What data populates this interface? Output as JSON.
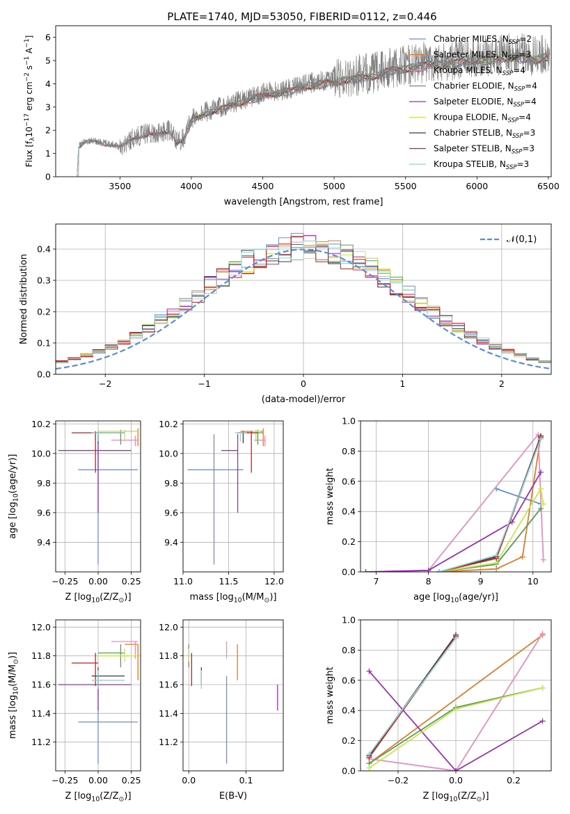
{
  "figure": {
    "title": "PLATE=1740, MJD=53050, FIBERID=0112, z=0.446"
  },
  "chart_data": [
    {
      "id": "spectrum",
      "type": "line",
      "xlabel": "wavelength [Angstrom, rest frame]",
      "ylabel": "Flux [f$_\\lambda$10$^{-17}$ erg cm$^{-2}$ s$^{-1}$ A$^{-1}$]",
      "ylabel_parts": [
        "Flux [f",
        "λ",
        "10",
        "−17",
        " erg cm",
        "−2",
        " s",
        "−1",
        " A",
        "−1",
        "]"
      ],
      "xlim": [
        3050,
        6520
      ],
      "ylim": [
        0,
        6.5
      ],
      "xticks": [
        3500,
        4000,
        4500,
        5000,
        5500,
        6000,
        6500
      ],
      "yticks": [
        0,
        1,
        2,
        3,
        4,
        5,
        6
      ],
      "grid": false,
      "legend_position": "upper-right",
      "data_curve": {
        "x": [
          3200,
          3210,
          3250,
          3300,
          3350,
          3400,
          3450,
          3500,
          3550,
          3600,
          3650,
          3700,
          3750,
          3800,
          3850,
          3900,
          3950,
          4000,
          4100,
          4200,
          4300,
          4400,
          4500,
          4600,
          4700,
          4800,
          4900,
          5000,
          5100,
          5200,
          5300,
          5400,
          5500,
          5600,
          5700,
          5800,
          5900,
          6000,
          6100,
          6200,
          6300,
          6400,
          6500
        ],
        "y": [
          0,
          1.3,
          1.5,
          1.55,
          1.5,
          1.45,
          1.4,
          1.3,
          1.5,
          1.7,
          1.8,
          1.9,
          1.85,
          1.9,
          2.0,
          1.5,
          1.7,
          2.5,
          2.8,
          3.0,
          3.2,
          3.4,
          3.6,
          3.7,
          3.8,
          4.0,
          4.1,
          4.2,
          4.3,
          4.4,
          4.5,
          4.7,
          4.8,
          4.9,
          5.0,
          5.0,
          5.1,
          5.2,
          5.2,
          5.3,
          5.3,
          5.2,
          5.3
        ]
      },
      "series": [
        {
          "name": "Chabrier MILES, N$_{SSP}$=2",
          "label_parts": [
            "Chabrier MILES, N",
            "SSP",
            "=2"
          ],
          "color": "#6a8fd8",
          "start": 3525
        },
        {
          "name": "Salpeter MILES, N$_{SSP}$=3",
          "label_parts": [
            "Salpeter MILES, N",
            "SSP",
            "=3"
          ],
          "color": "#e07c2a",
          "start": 3525
        },
        {
          "name": "Kroupa MILES, N$_{SSP}$=4",
          "label_parts": [
            "Kroupa MILES, N",
            "SSP",
            "=4"
          ],
          "color": "#e58fbf",
          "start": 3525
        },
        {
          "name": "Chabrier ELODIE, N$_{SSP}$=4",
          "label_parts": [
            "Chabrier ELODIE, N",
            "SSP",
            "=4"
          ],
          "color": "#5a9a5a",
          "start": 3900
        },
        {
          "name": "Salpeter ELODIE, N$_{SSP}$=4",
          "label_parts": [
            "Salpeter ELODIE, N",
            "SSP",
            "=4"
          ],
          "color": "#9b30b0",
          "start": 3900
        },
        {
          "name": "Kroupa ELODIE, N$_{SSP}$=4",
          "label_parts": [
            "Kroupa ELODIE, N",
            "SSP",
            "=4"
          ],
          "color": "#c8e64a",
          "start": 3900
        },
        {
          "name": "Chabrier STELIB, N$_{SSP}$=3",
          "label_parts": [
            "Chabrier STELIB, N",
            "SSP",
            "=3"
          ],
          "color": "#3a3a3a",
          "start": 3200
        },
        {
          "name": "Salpeter STELIB, N$_{SSP}$=3",
          "label_parts": [
            "Salpeter STELIB, N",
            "SSP",
            "=3"
          ],
          "color": "#c81e1e",
          "start": 3200
        },
        {
          "name": "Kroupa STELIB, N$_{SSP}$=3",
          "label_parts": [
            "Kroupa STELIB, N",
            "SSP",
            "=3"
          ],
          "color": "#8fd3d8",
          "start": 3200
        }
      ]
    },
    {
      "id": "residual-histogram",
      "type": "histogram",
      "xlabel": "(data-model)/error",
      "ylabel": "Normed distribution",
      "xlim": [
        -2.5,
        2.5
      ],
      "ylim": [
        0,
        0.48
      ],
      "xticks": [
        -2,
        -1,
        0,
        1,
        2
      ],
      "yticks": [
        0.0,
        0.1,
        0.2,
        0.3,
        0.4
      ],
      "grid": true,
      "legend_position": "upper-right",
      "bin_edges_range": [
        -2.5,
        2.5
      ],
      "n_bins": 40,
      "reference_curve": {
        "name": "$\\mathcal{N}(0,1)$",
        "label": "𝒩(0,1)",
        "color": "#5b8bd6",
        "style": "dashed"
      }
    },
    {
      "id": "age-vs-z",
      "type": "errorbar",
      "xlabel": "Z [log$_{10}$(Z/Z$_\\odot$)]",
      "ylabel": "age  [log$_{10}$(age/yr)]",
      "xlim": [
        -0.32,
        0.32
      ],
      "ylim": [
        9.2,
        10.22
      ],
      "xticks": [
        -0.25,
        0.0,
        0.25
      ],
      "yticks": [
        9.4,
        9.6,
        9.8,
        10.0,
        10.2
      ],
      "grid": true
    },
    {
      "id": "age-vs-mass",
      "type": "errorbar",
      "xlabel": "mass [log$_{10}$(M/M$_\\odot$)]",
      "ylabel": "",
      "xlim": [
        11.0,
        12.1
      ],
      "ylim": [
        9.2,
        10.22
      ],
      "xticks": [
        11.0,
        11.5,
        12.0
      ],
      "yticks": [
        9.4,
        9.6,
        9.8,
        10.0,
        10.2
      ],
      "grid": true
    },
    {
      "id": "mass-weight-vs-age",
      "type": "line",
      "xlabel": "age  [log$_{10}$(age/yr)]",
      "ylabel": "mass weight",
      "xlim": [
        6.7,
        10.35
      ],
      "ylim": [
        0,
        1.0
      ],
      "xticks": [
        7,
        8,
        9,
        10
      ],
      "yticks": [
        0.0,
        0.2,
        0.4,
        0.6,
        0.8,
        1.0
      ],
      "grid": true
    },
    {
      "id": "mass-vs-z",
      "type": "errorbar",
      "xlabel": "Z [log$_{10}$(Z/Z$_\\odot$)]",
      "ylabel": "mass [log$_{10}$(M/M$_\\odot$)]",
      "xlim": [
        -0.32,
        0.32
      ],
      "ylim": [
        11.0,
        12.05
      ],
      "xticks": [
        -0.25,
        0.0,
        0.25
      ],
      "yticks": [
        11.2,
        11.4,
        11.6,
        11.8,
        12.0
      ],
      "grid": true
    },
    {
      "id": "mass-vs-ebv",
      "type": "errorbar",
      "xlabel": "E(B-V)",
      "ylabel": "",
      "xlim": [
        -0.01,
        0.165
      ],
      "ylim": [
        11.0,
        12.05
      ],
      "xticks": [
        0.0,
        0.1
      ],
      "yticks": [
        11.2,
        11.4,
        11.6,
        11.8,
        12.0
      ],
      "grid": true
    },
    {
      "id": "mass-weight-vs-z",
      "type": "line",
      "xlabel": "Z [log$_{10}$(Z/Z$_\\odot$)]",
      "ylabel": "mass weight",
      "xlim": [
        -0.33,
        0.33
      ],
      "ylim": [
        0,
        1.0
      ],
      "xticks": [
        -0.2,
        0.0,
        0.2
      ],
      "yticks": [
        0.0,
        0.2,
        0.4,
        0.6,
        0.8,
        1.0
      ],
      "grid": true
    }
  ],
  "estimates": [
    {
      "model": "Chabrier MILES",
      "color": "#6a8fd8",
      "z": [
        -0.15,
        0.0,
        0.3
      ],
      "age": [
        9.25,
        9.89,
        10.13
      ],
      "mass": [
        11.05,
        11.34,
        11.66
      ],
      "ebv": 0.066,
      "ebv_err": 0.0
    },
    {
      "model": "Salpeter MILES",
      "color": "#e07c2a",
      "z": [
        0.2,
        0.3,
        0.3
      ],
      "age": [
        10.05,
        10.15,
        10.17
      ],
      "mass": [
        11.63,
        11.88,
        11.88
      ],
      "ebv": 0.085,
      "ebv_err": 0.0
    },
    {
      "model": "Kroupa MILES",
      "color": "#e58fbf",
      "z": [
        0.1,
        0.28,
        0.3
      ],
      "age": [
        10.05,
        10.09,
        10.12
      ],
      "mass": [
        11.78,
        11.9,
        11.9
      ],
      "ebv": 0.066,
      "ebv_err": 0.0
    },
    {
      "model": "Chabrier ELODIE",
      "color": "#5a9a5a",
      "z": [
        0.0,
        0.17,
        0.2
      ],
      "age": [
        10.06,
        10.14,
        10.16
      ],
      "mass": [
        11.72,
        11.82,
        11.88
      ],
      "ebv": 0.0,
      "ebv_err": 0.0
    },
    {
      "model": "Salpeter ELODIE",
      "color": "#9b30b0",
      "z": [
        -0.3,
        0.0,
        0.25
      ],
      "age": [
        9.6,
        10.02,
        10.13
      ],
      "mass": [
        11.42,
        11.6,
        11.6
      ],
      "ebv": 0.155,
      "ebv_err": 0.0
    },
    {
      "model": "Kroupa ELODIE",
      "color": "#c8e64a",
      "z": [
        0.0,
        0.2,
        0.3
      ],
      "age": [
        10.08,
        10.15,
        10.16
      ],
      "mass": [
        11.76,
        11.8,
        11.85
      ],
      "ebv": 0.0,
      "ebv_err": 0.0
    },
    {
      "model": "Chabrier STELIB",
      "color": "#3a3a3a",
      "z": [
        -0.05,
        0.0,
        0.2
      ],
      "age": [
        10.07,
        10.14,
        10.15
      ],
      "mass": [
        11.6,
        11.66,
        11.72
      ],
      "ebv": 0.022,
      "ebv_err": 0.0
    },
    {
      "model": "Salpeter STELIB",
      "color": "#c81e1e",
      "z": [
        -0.2,
        -0.02,
        0.0
      ],
      "age": [
        9.87,
        10.14,
        10.15
      ],
      "mass": [
        11.59,
        11.75,
        11.82
      ],
      "ebv": 0.005,
      "ebv_err": 0.0
    },
    {
      "model": "Kroupa STELIB",
      "color": "#8fd3d8",
      "z": [
        -0.05,
        0.0,
        0.2
      ],
      "age": [
        10.08,
        10.14,
        10.15
      ],
      "mass": [
        11.57,
        11.63,
        11.7
      ],
      "ebv": 0.022,
      "ebv_err": 0.0
    }
  ],
  "mass_weights": [
    {
      "model": "Chabrier MILES",
      "color": "#6a8fd8",
      "age": [
        9.3,
        10.15
      ],
      "weight": [
        0.55,
        0.45
      ],
      "z": [
        0.0,
        0.0
      ],
      "zweight": [
        0.0,
        0.0
      ]
    },
    {
      "model": "Salpeter MILES",
      "color": "#e07c2a",
      "age": [
        8.2,
        9.3,
        9.8,
        10.15
      ],
      "weight": [
        0.0,
        0.02,
        0.1,
        0.9
      ],
      "z": [
        -0.3,
        0.3
      ],
      "zweight": [
        0.05,
        0.9
      ]
    },
    {
      "model": "Kroupa MILES",
      "color": "#e58fbf",
      "age": [
        6.8,
        8.0,
        10.1,
        10.2
      ],
      "weight": [
        0.0,
        0.01,
        0.91,
        0.08
      ],
      "z": [
        -0.3,
        0.0,
        0.3
      ],
      "zweight": [
        0.08,
        0.0,
        0.91
      ]
    },
    {
      "model": "Chabrier ELODIE",
      "color": "#5a9a5a",
      "age": [
        8.2,
        9.3,
        10.15
      ],
      "weight": [
        0.0,
        0.05,
        0.42
      ],
      "z": [
        -0.3,
        0.0,
        0.3
      ],
      "zweight": [
        0.05,
        0.42,
        0.55
      ]
    },
    {
      "model": "Salpeter ELODIE",
      "color": "#9b30b0",
      "age": [
        6.8,
        8.0,
        9.6,
        10.15
      ],
      "weight": [
        0.0,
        0.01,
        0.33,
        0.66
      ],
      "z": [
        -0.3,
        0.0,
        0.3
      ],
      "zweight": [
        0.66,
        0.0,
        0.33
      ]
    },
    {
      "model": "Kroupa ELODIE",
      "color": "#c8e64a",
      "age": [
        8.2,
        9.3,
        10.15,
        10.2
      ],
      "weight": [
        0.0,
        0.06,
        0.55,
        0.45
      ],
      "z": [
        -0.3,
        0.0,
        0.3
      ],
      "zweight": [
        0.02,
        0.41,
        0.55
      ]
    },
    {
      "model": "Chabrier STELIB",
      "color": "#3a3a3a",
      "age": [
        8.2,
        9.3,
        10.15
      ],
      "weight": [
        0.0,
        0.1,
        0.9
      ],
      "z": [
        -0.3,
        0.0
      ],
      "zweight": [
        0.1,
        0.9
      ]
    },
    {
      "model": "Salpeter STELIB",
      "color": "#c81e1e",
      "age": [
        8.2,
        9.3,
        10.15
      ],
      "weight": [
        0.0,
        0.09,
        0.89
      ],
      "z": [
        -0.3,
        0.0
      ],
      "zweight": [
        0.09,
        0.89
      ]
    },
    {
      "model": "Kroupa STELIB",
      "color": "#8fd3d8",
      "age": [
        8.2,
        9.3,
        10.15
      ],
      "weight": [
        0.0,
        0.11,
        0.88
      ],
      "z": [
        -0.3,
        0.0
      ],
      "zweight": [
        0.11,
        0.88
      ]
    }
  ]
}
